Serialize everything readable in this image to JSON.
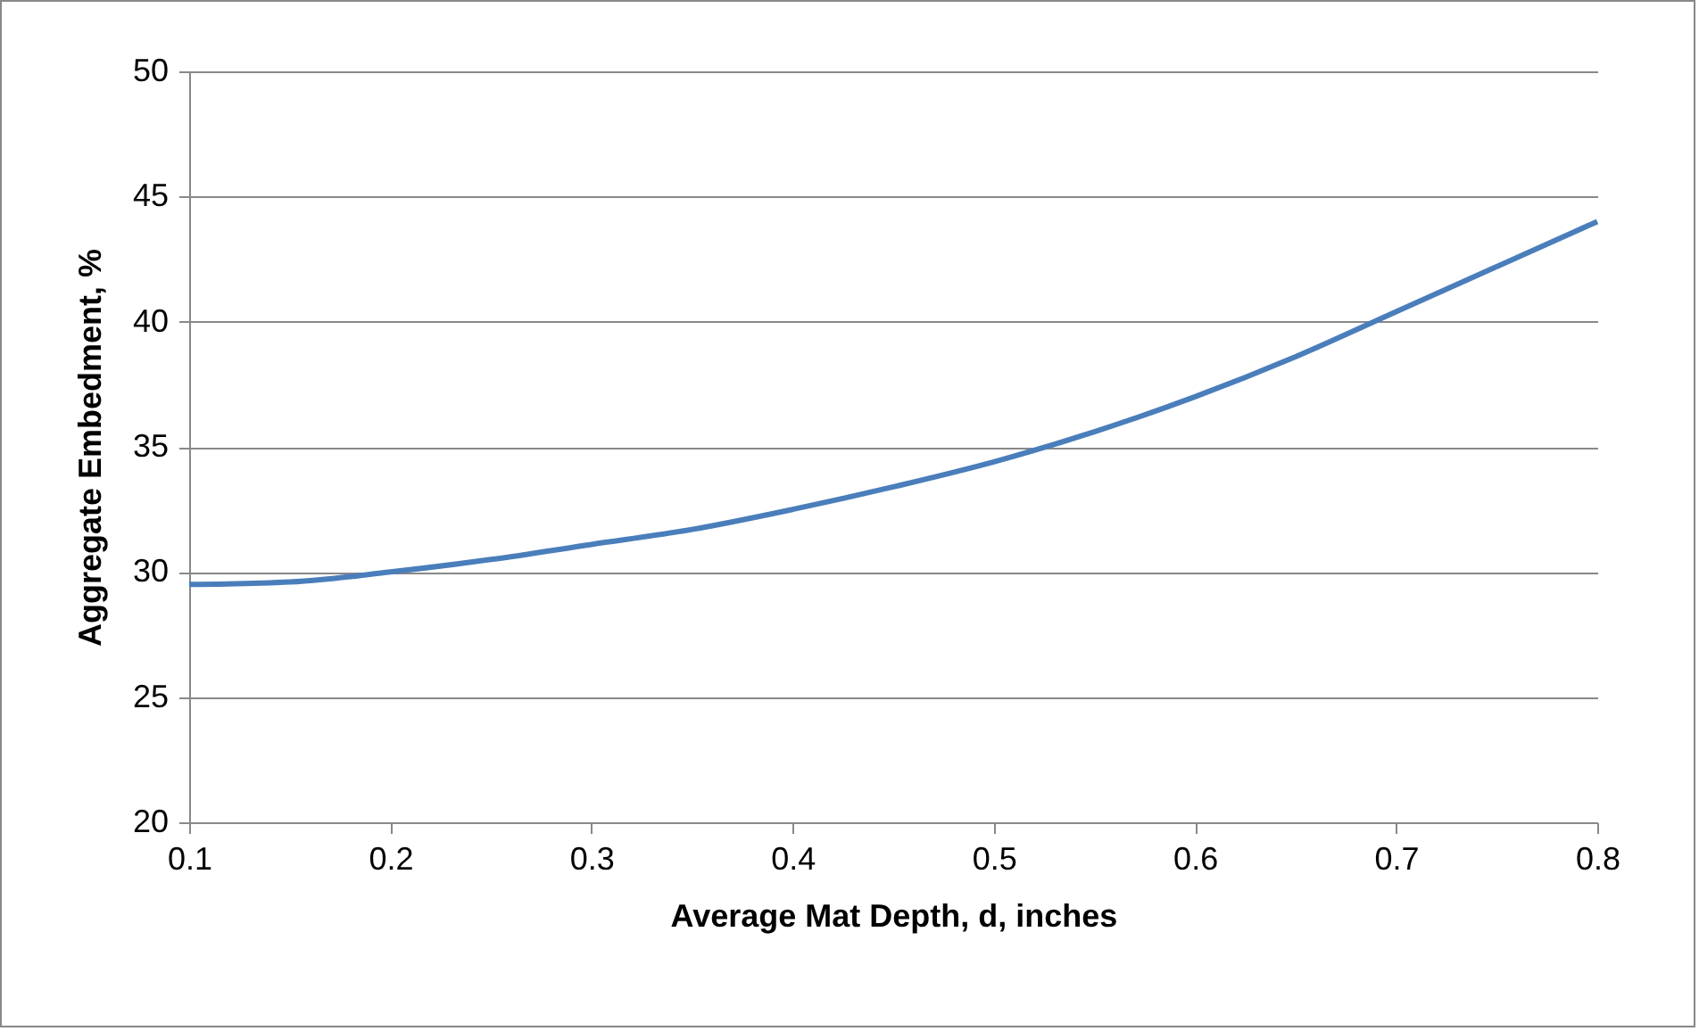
{
  "chart_data": {
    "type": "line",
    "xlabel": "Average Mat Depth, d, inches",
    "ylabel": "Aggregate Embedment, %",
    "x": [
      0.1,
      0.15,
      0.2,
      0.25,
      0.3,
      0.35,
      0.4,
      0.45,
      0.5,
      0.55,
      0.6,
      0.65,
      0.7,
      0.75,
      0.8
    ],
    "series": [
      {
        "color": "#4a7ebb",
        "values": [
          29.5,
          29.6,
          30.0,
          30.5,
          31.1,
          31.7,
          32.5,
          33.4,
          34.4,
          35.6,
          37.0,
          38.6,
          40.4,
          42.2,
          44.0
        ]
      }
    ],
    "xlim": [
      0.1,
      0.8
    ],
    "xticks": [
      0.1,
      0.2,
      0.3,
      0.4,
      0.5,
      0.6,
      0.7,
      0.8
    ],
    "ylim": [
      20,
      50
    ],
    "yticks": [
      20,
      25,
      30,
      35,
      40,
      45,
      50
    ],
    "grid": "y",
    "legend": false,
    "marker": "none",
    "line_style": "solid"
  }
}
